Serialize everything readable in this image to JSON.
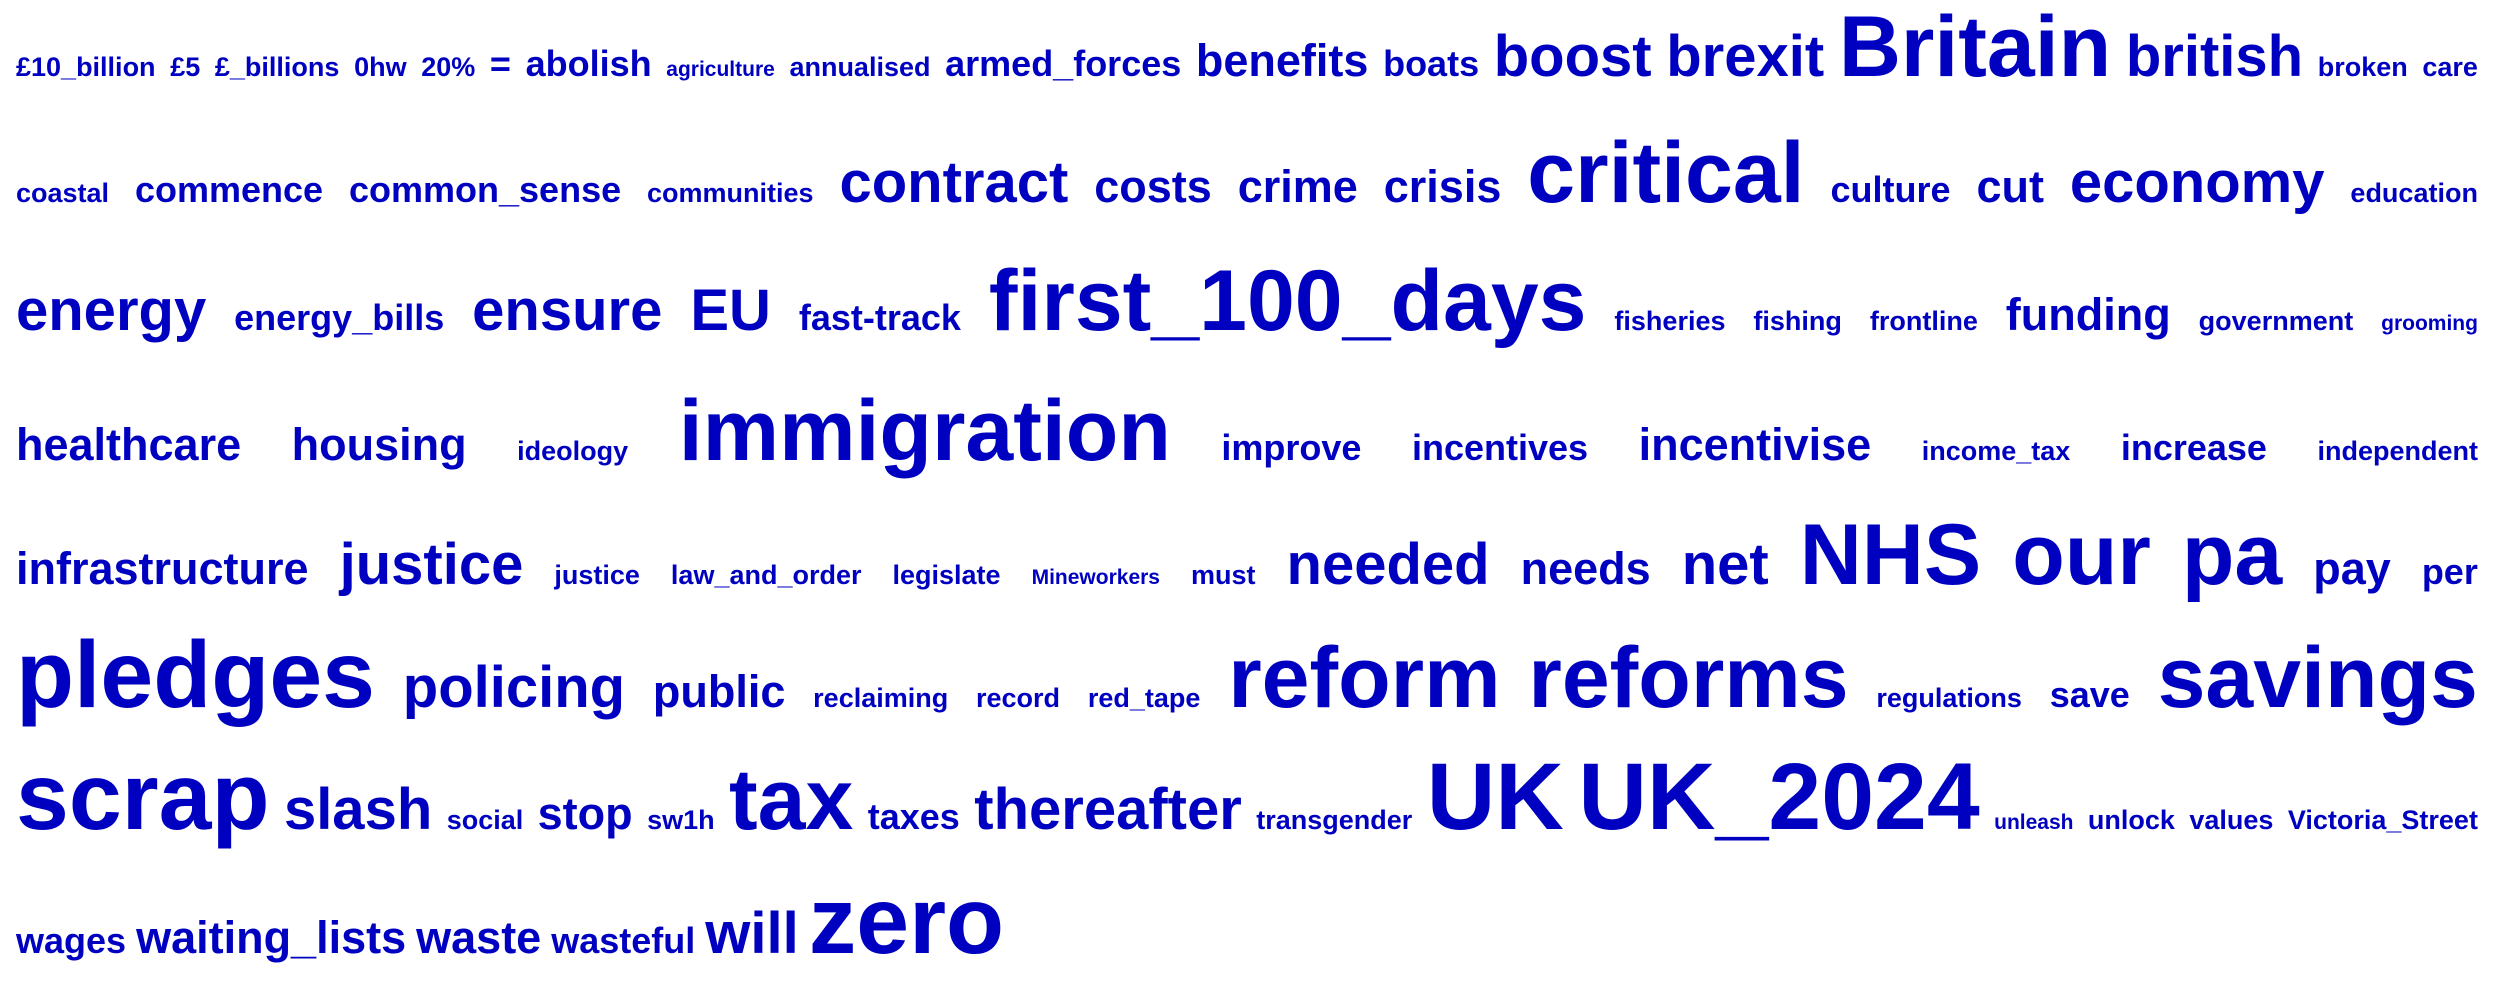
{
  "word_color": "#0000c0",
  "rows": [
    [
      {
        "t": "£10_billion",
        "w": 1
      },
      {
        "t": "£5",
        "w": 1
      },
      {
        "t": "£_billions",
        "w": 1
      },
      {
        "t": "0hw",
        "w": 1
      },
      {
        "t": "20%",
        "w": 1
      },
      {
        "t": "=",
        "w": 2
      },
      {
        "t": "abolish",
        "w": 2
      },
      {
        "t": "agriculture",
        "w": 0
      },
      {
        "t": "annualised",
        "w": 1
      },
      {
        "t": "armed_forces",
        "w": 2
      },
      {
        "t": "benefits",
        "w": 3
      },
      {
        "t": "boats",
        "w": 2
      },
      {
        "t": "boost",
        "w": 4
      },
      {
        "t": "brexit",
        "w": 4
      },
      {
        "t": "Britain",
        "w": 6
      },
      {
        "t": "british",
        "w": 4
      },
      {
        "t": "broken",
        "w": 1
      },
      {
        "t": "care",
        "w": 1
      }
    ],
    [
      {
        "t": "coastal",
        "w": 1
      },
      {
        "t": "commence",
        "w": 2
      },
      {
        "t": "common_sense",
        "w": 2
      },
      {
        "t": "communities",
        "w": 1
      },
      {
        "t": "contract",
        "w": 4
      },
      {
        "t": "costs",
        "w": 3
      },
      {
        "t": "crime",
        "w": 3
      },
      {
        "t": "crisis",
        "w": 3
      },
      {
        "t": "critical",
        "w": 6
      },
      {
        "t": "culture",
        "w": 2
      },
      {
        "t": "cut",
        "w": 3
      },
      {
        "t": "economy",
        "w": 4
      },
      {
        "t": "education",
        "w": 1
      }
    ],
    [
      {
        "t": "energy",
        "w": 4
      },
      {
        "t": "energy_bills",
        "w": 2
      },
      {
        "t": "ensure",
        "w": 4
      },
      {
        "t": "EU",
        "w": 4
      },
      {
        "t": "fast-track",
        "w": 2
      },
      {
        "t": "first_100_days",
        "w": 6
      },
      {
        "t": "fisheries",
        "w": 1
      },
      {
        "t": "fishing",
        "w": 1
      },
      {
        "t": "frontline",
        "w": 1
      },
      {
        "t": "funding",
        "w": 3
      },
      {
        "t": "government",
        "w": 1
      },
      {
        "t": "grooming",
        "w": 0
      }
    ],
    [
      {
        "t": "healthcare",
        "w": 3
      },
      {
        "t": "housing",
        "w": 3
      },
      {
        "t": "ideology",
        "w": 1
      },
      {
        "t": "immigration",
        "w": 6
      },
      {
        "t": "improve",
        "w": 2
      },
      {
        "t": "incentives",
        "w": 2
      },
      {
        "t": "incentivise",
        "w": 3
      },
      {
        "t": "income_tax",
        "w": 1
      },
      {
        "t": "increase",
        "w": 2
      },
      {
        "t": "independent",
        "w": 1
      }
    ],
    [
      {
        "t": "infrastructure",
        "w": 3
      },
      {
        "t": "justice",
        "w": 4
      },
      {
        "t": "justice",
        "w": 1
      },
      {
        "t": "law_and_order",
        "w": 1
      },
      {
        "t": "legislate",
        "w": 1
      },
      {
        "t": "Mineworkers",
        "w": 0
      },
      {
        "t": "must",
        "w": 1
      },
      {
        "t": "needed",
        "w": 4
      },
      {
        "t": "needs",
        "w": 3
      },
      {
        "t": "net",
        "w": 4
      },
      {
        "t": "NHS",
        "w": 6
      },
      {
        "t": "our",
        "w": 6
      },
      {
        "t": "pa",
        "w": 6
      },
      {
        "t": "pay",
        "w": 3
      },
      {
        "t": "per",
        "w": 2
      }
    ],
    [
      {
        "t": "pledges",
        "w": 7
      },
      {
        "t": "policing",
        "w": 4
      },
      {
        "t": "public",
        "w": 3
      },
      {
        "t": "reclaiming",
        "w": 1
      },
      {
        "t": "record",
        "w": 1
      },
      {
        "t": "red_tape",
        "w": 1
      },
      {
        "t": "reform",
        "w": 6
      },
      {
        "t": "reforms",
        "w": 6
      },
      {
        "t": "regulations",
        "w": 1
      },
      {
        "t": "save",
        "w": 2
      },
      {
        "t": "savings",
        "w": 6
      }
    ],
    [
      {
        "t": "scrap",
        "w": 7
      },
      {
        "t": "slash",
        "w": 4
      },
      {
        "t": "social",
        "w": 1
      },
      {
        "t": "stop",
        "w": 3
      },
      {
        "t": "sw1h",
        "w": 1
      },
      {
        "t": "tax",
        "w": 6
      },
      {
        "t": "taxes",
        "w": 2
      },
      {
        "t": "thereafter",
        "w": 4
      },
      {
        "t": "transgender",
        "w": 1
      },
      {
        "t": "UK",
        "w": 7
      },
      {
        "t": "UK_2024",
        "w": 7
      },
      {
        "t": "unleash",
        "w": 0
      },
      {
        "t": "unlock",
        "w": 1
      },
      {
        "t": "values",
        "w": 1
      },
      {
        "t": "Victoria_Street",
        "w": 1
      }
    ],
    [
      {
        "t": "wages",
        "w": 2
      },
      {
        "t": "waiting_lists",
        "w": 3
      },
      {
        "t": "waste",
        "w": 3
      },
      {
        "t": "wasteful",
        "w": 2
      },
      {
        "t": "will",
        "w": 4
      },
      {
        "t": "zero",
        "w": 7
      }
    ]
  ]
}
